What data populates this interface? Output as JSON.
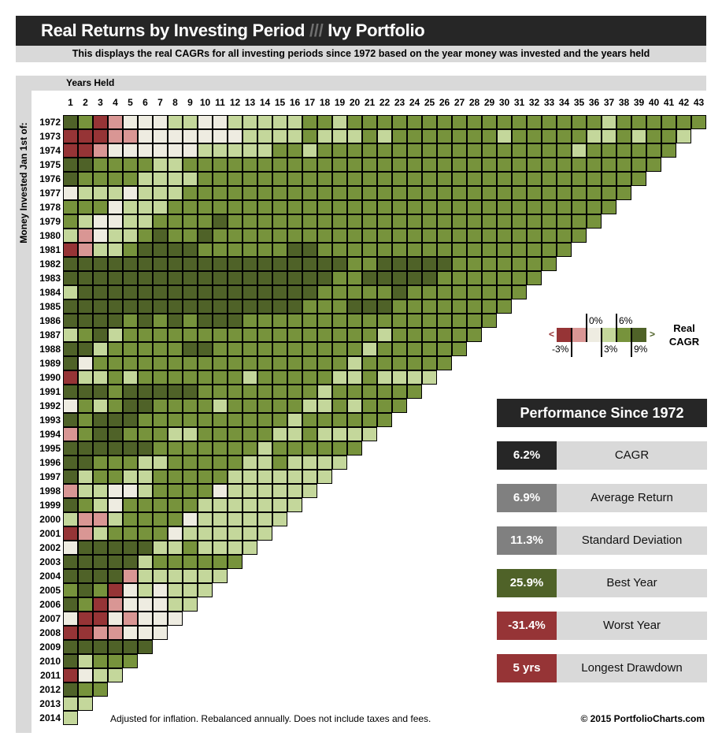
{
  "header": {
    "title_main": "Real Returns by Investing Period",
    "title_sep": "///",
    "title_portfolio": "Ivy Portfolio",
    "subtitle": "This displays the real CAGRs for all investing periods since 1972 based on the year money was invested and the years held"
  },
  "legend": {
    "title": "Real CAGR",
    "less_arrow": "<",
    "more_arrow": ">",
    "labels": [
      "-3%",
      "0%",
      "3%",
      "6%",
      "9%"
    ],
    "bin_colors": [
      "#963436",
      "#d99694",
      "#eeece1",
      "#c4d79b",
      "#77933c",
      "#4f6228"
    ]
  },
  "chart_data": {
    "type": "heatmap",
    "xlabel": "Years Held",
    "ylabel": "Money Invested Jan 1st of:",
    "x_start": 1,
    "y_start": 1972,
    "bins": [
      "< -3%",
      "-3% to 0%",
      "0% to 3%",
      "3% to 6%",
      "6% to 9%",
      "> 9%"
    ],
    "rows": {
      "1972": "5401222332233333443444444444444444443444444",
      "1973": "000112222222333343334344444443444443343443",
      "1974": "00122222233333443444444444444444443444444",
      "1975": "5544443344444444444444444444444444444444",
      "1976": "544443333444444444444444444444444444444",
      "1977": "23332333444444444444444444444444444444",
      "1978": "4442333444444444444444444444444444444",
      "1979": "432233444454444444444444444444444444",
      "1980": "31233454454444444444444444444444444",
      "1981": "0133455554444445544444444444444444",
      "1982": "555555555555555555544555554444444",
      "1983": "55555555555555555544555554444444",
      "1984": "3555555555555555544444544444444",
      "1985": "555555555555555544455544444444",
      "1986": "55554545455544444444444444444",
      "1987": "3453444444444444444443444444",
      "1988": "553444445544444444443444444",
      "1989": "52444444444444444443444444",
      "1990": "0334344444443444443343333",
      "1991": "555455555444444443444444",
      "1992": "24345544443444443343444",
      "1993": "5455544444444443444444",
      "1994": "145544433444443343333",
      "1995": "55555544444443444444",
      "1996": "5544433444443343333",
      "1997": "534433444443333333",
      "1998": "13322344442333333",
      "1999": "5432444443333333",
      "2000": "311344442333333",
      "2001": "01344442333333",
      "2002": "2555553343333",
      "2003": "555553444444",
      "2004": "55551333333",
      "2005": "4540232333",
      "2006": "540122233",
      "2007": "20021222",
      "2008": "0011222",
      "2009": "555555",
      "2010": "53444",
      "2011": "0233",
      "2012": "544",
      "2013": "33",
      "2014": "3"
    }
  },
  "performance": {
    "title": "Performance Since 1972",
    "stats": [
      {
        "value": "6.2%",
        "label": "CAGR",
        "color": "#262626"
      },
      {
        "value": "6.9%",
        "label": "Average Return",
        "color": "#808080"
      },
      {
        "value": "11.3%",
        "label": "Standard Deviation",
        "color": "#808080"
      },
      {
        "value": "25.9%",
        "label": "Best Year",
        "color": "#4f6228"
      },
      {
        "value": "-31.4%",
        "label": "Worst Year",
        "color": "#963436"
      },
      {
        "value": "5 yrs",
        "label": "Longest Drawdown",
        "color": "#963436"
      }
    ]
  },
  "footer": {
    "note": "Adjusted for inflation.  Rebalanced annually.  Does not include taxes and fees.",
    "copyright": "© 2015 PortfolioCharts.com"
  }
}
